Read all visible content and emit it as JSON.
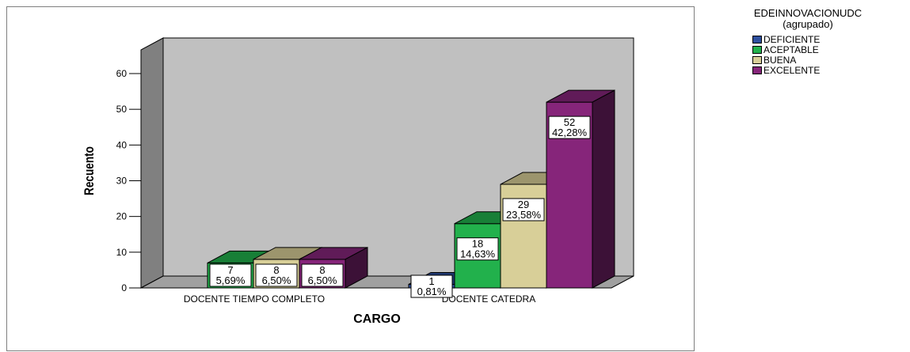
{
  "chart_data": {
    "type": "bar",
    "xlabel": "CARGO",
    "ylabel": "Recuento",
    "ylim": [
      0,
      60
    ],
    "yticks": [
      "0",
      "10",
      "20",
      "30",
      "40",
      "50",
      "60"
    ],
    "categories": [
      "DOCENTE TIEMPO COMPLETO",
      "DOCENTE CATEDRA"
    ],
    "legend": {
      "title_line1": "EDEINNOVACIONUDC",
      "title_line2": "(agrupado)",
      "placement": "right"
    },
    "series": [
      {
        "name": "DEFICIENTE",
        "color": "#2e4f9e",
        "values": [
          0,
          1
        ],
        "labels": [
          null,
          {
            "count": "1",
            "pct": "0,81%"
          }
        ]
      },
      {
        "name": "ACEPTABLE",
        "color": "#22b14c",
        "values": [
          7,
          18
        ],
        "labels": [
          {
            "count": "7",
            "pct": "5,69%"
          },
          {
            "count": "18",
            "pct": "14,63%"
          }
        ]
      },
      {
        "name": "BUENA",
        "color": "#d8cf98",
        "values": [
          8,
          29
        ],
        "labels": [
          {
            "count": "8",
            "pct": "6,50%"
          },
          {
            "count": "29",
            "pct": "23,58%"
          }
        ]
      },
      {
        "name": "EXCELENTE",
        "color": "#86257a",
        "values": [
          8,
          52
        ],
        "labels": [
          {
            "count": "8",
            "pct": "6,50%"
          },
          {
            "count": "52",
            "pct": "42,28%"
          }
        ]
      }
    ],
    "grid": false
  }
}
